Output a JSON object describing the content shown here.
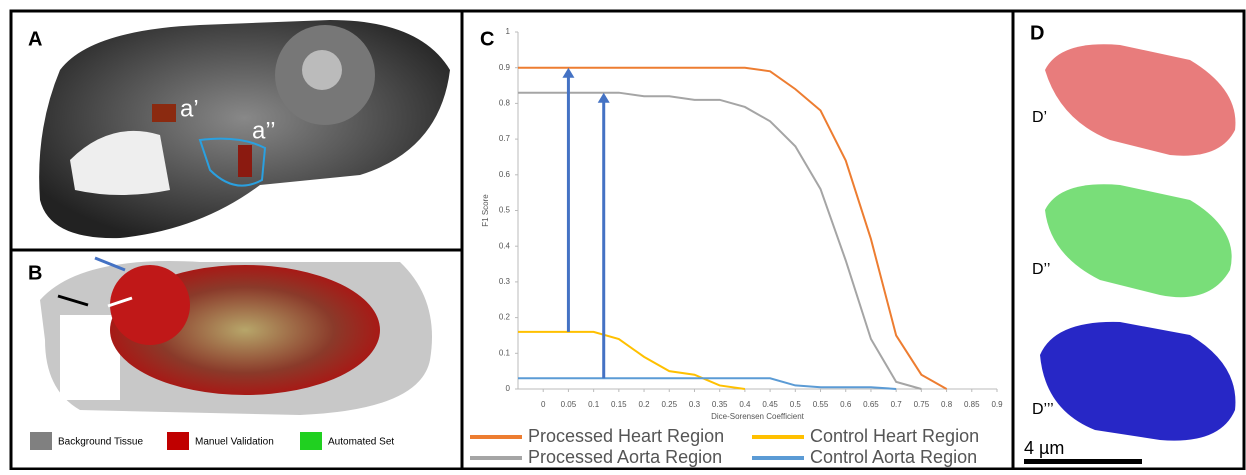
{
  "panels": {
    "A": {
      "label": "A",
      "callouts": [
        "a’",
        "a’’"
      ]
    },
    "B": {
      "label": "B",
      "legend": [
        "Background Tissue",
        "Manuel Validation",
        "Automated Set"
      ]
    },
    "D": {
      "label": "D",
      "callouts": [
        "D’",
        "D’’",
        "D’’’"
      ],
      "scale_bar": "4 µm"
    }
  },
  "chart_data": {
    "type": "line",
    "panel_label": "C",
    "x_label": "Dice-Sorensen Coefficient",
    "y_label": "F1 Score",
    "x": [
      -0.05,
      0,
      0.05,
      0.1,
      0.15,
      0.2,
      0.25,
      0.3,
      0.35,
      0.4,
      0.45,
      0.5,
      0.55,
      0.6,
      0.65,
      0.7,
      0.75,
      0.8,
      0.85,
      0.9
    ],
    "series": [
      {
        "name": "Processed Heart Region",
        "color": "#ed7d31",
        "values": [
          0.9,
          0.9,
          0.9,
          0.9,
          0.9,
          0.9,
          0.9,
          0.9,
          0.9,
          0.9,
          0.89,
          0.84,
          0.78,
          0.64,
          0.42,
          0.15,
          0.04,
          0,
          null,
          null
        ]
      },
      {
        "name": "Control Heart Region",
        "color": "#ffc000",
        "values": [
          0.16,
          0.16,
          0.16,
          0.16,
          0.14,
          0.09,
          0.05,
          0.04,
          0.01,
          0,
          null,
          null,
          null,
          null,
          null,
          null,
          null,
          null,
          null,
          null
        ]
      },
      {
        "name": "Processed Aorta Region",
        "color": "#a5a5a5",
        "values": [
          0.83,
          0.83,
          0.83,
          0.83,
          0.83,
          0.82,
          0.82,
          0.81,
          0.81,
          0.79,
          0.75,
          0.68,
          0.56,
          0.36,
          0.14,
          0.02,
          0,
          null,
          null,
          null
        ]
      },
      {
        "name": "Control Aorta Region",
        "color": "#5b9bd5",
        "values": [
          0.03,
          0.03,
          0.03,
          0.03,
          0.03,
          0.03,
          0.03,
          0.03,
          0.03,
          0.03,
          0.03,
          0.01,
          0.005,
          0.005,
          0.005,
          0,
          null,
          null,
          null,
          null
        ]
      }
    ],
    "arrows": [
      {
        "x": 0.05,
        "from": 0.16,
        "to": 0.9
      },
      {
        "x": 0.12,
        "from": 0.03,
        "to": 0.83
      }
    ],
    "arrow_color": "#4472c4",
    "xlim": [
      -0.05,
      0.9
    ],
    "xticks": [
      0,
      0.05,
      0.1,
      0.15,
      0.2,
      0.25,
      0.3,
      0.35,
      0.4,
      0.45,
      0.5,
      0.55,
      0.6,
      0.65,
      0.7,
      0.75,
      0.8,
      0.85,
      0.9
    ],
    "ylim": [
      0,
      1
    ],
    "yticks": [
      0,
      0.1,
      0.2,
      0.3,
      0.4,
      0.5,
      0.6,
      0.7,
      0.8,
      0.9,
      1
    ]
  }
}
